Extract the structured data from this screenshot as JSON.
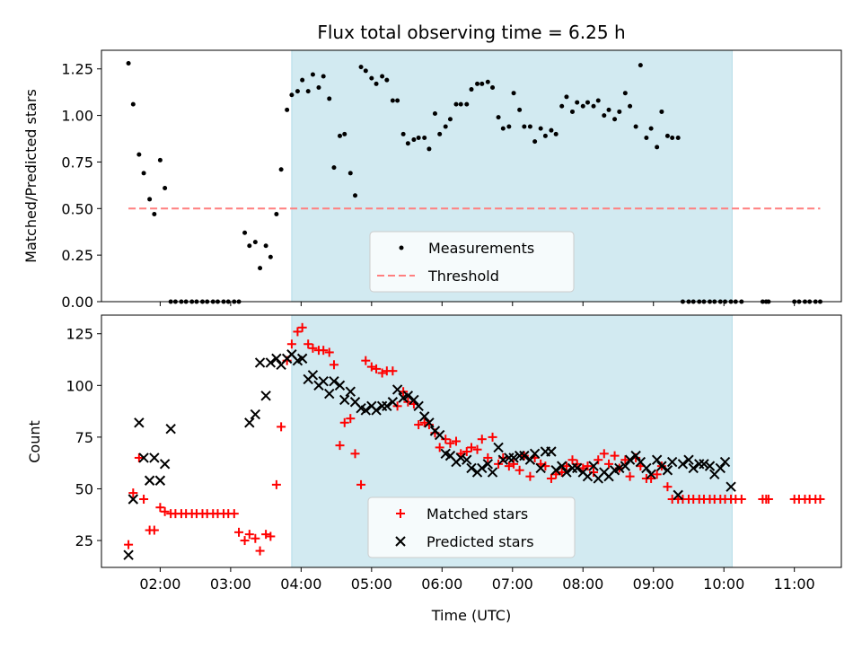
{
  "chart_data": [
    {
      "type": "scatter",
      "title": "Flux total observing time = 6.25 h",
      "xlabel": "",
      "ylabel": "Matched/Predicted stars",
      "ylim": [
        0,
        1.35
      ],
      "yticks": [
        "0.00",
        "0.25",
        "0.50",
        "0.75",
        "1.00",
        "1.25"
      ],
      "shaded_region": {
        "x_start": "03:52",
        "x_end": "10:07",
        "color": "#add8e6"
      },
      "legend_position": "lower-center",
      "series": [
        {
          "name": "Measurements",
          "marker": "dot",
          "color": "#000000",
          "x": [
            "01:33",
            "01:37",
            "01:42",
            "01:46",
            "01:51",
            "01:55",
            "02:00",
            "02:04",
            "02:09",
            "02:13",
            "02:18",
            "02:22",
            "02:27",
            "02:31",
            "02:36",
            "02:40",
            "02:45",
            "02:49",
            "02:54",
            "02:58",
            "03:03",
            "03:07",
            "03:12",
            "03:16",
            "03:21",
            "03:25",
            "03:30",
            "03:34",
            "03:39",
            "03:43",
            "03:48",
            "03:52",
            "03:57",
            "04:01",
            "04:06",
            "04:10",
            "04:15",
            "04:19",
            "04:24",
            "04:28",
            "04:33",
            "04:37",
            "04:42",
            "04:46",
            "04:51",
            "04:55",
            "05:00",
            "05:04",
            "05:09",
            "05:13",
            "05:18",
            "05:22",
            "05:27",
            "05:31",
            "05:36",
            "05:40",
            "05:45",
            "05:49",
            "05:54",
            "05:58",
            "06:03",
            "06:07",
            "06:12",
            "06:16",
            "06:21",
            "06:25",
            "06:30",
            "06:34",
            "06:39",
            "06:43",
            "06:48",
            "06:52",
            "06:57",
            "07:01",
            "07:06",
            "07:10",
            "07:15",
            "07:19",
            "07:24",
            "07:28",
            "07:33",
            "07:37",
            "07:42",
            "07:46",
            "07:51",
            "07:55",
            "08:00",
            "08:04",
            "08:09",
            "08:13",
            "08:18",
            "08:22",
            "08:27",
            "08:31",
            "08:36",
            "08:40",
            "08:45",
            "08:49",
            "08:54",
            "08:58",
            "09:03",
            "09:07",
            "09:12",
            "09:16",
            "09:21",
            "09:25",
            "09:30",
            "09:34",
            "09:39",
            "09:43",
            "09:48",
            "09:52",
            "09:57",
            "10:01",
            "10:06",
            "10:10",
            "10:15",
            "10:33",
            "10:36",
            "10:38",
            "11:00",
            "11:04",
            "11:09",
            "11:13",
            "11:18",
            "11:22"
          ],
          "y": [
            1.28,
            1.06,
            0.79,
            0.69,
            0.55,
            0.47,
            0.76,
            0.61,
            0.0,
            0.0,
            0.0,
            0.0,
            0.0,
            0.0,
            0.0,
            0.0,
            0.0,
            0.0,
            0.0,
            0.0,
            0.0,
            0.0,
            0.37,
            0.3,
            0.32,
            0.18,
            0.3,
            0.24,
            0.47,
            0.71,
            1.03,
            1.11,
            1.13,
            1.19,
            1.13,
            1.22,
            1.15,
            1.21,
            1.09,
            0.72,
            0.89,
            0.9,
            0.69,
            0.57,
            1.26,
            1.24,
            1.2,
            1.17,
            1.21,
            1.19,
            1.08,
            1.08,
            0.9,
            0.85,
            0.87,
            0.88,
            0.88,
            0.82,
            1.01,
            0.9,
            0.94,
            0.98,
            1.06,
            1.06,
            1.06,
            1.14,
            1.17,
            1.17,
            1.18,
            1.15,
            0.99,
            0.93,
            0.94,
            1.12,
            1.03,
            0.94,
            0.94,
            0.86,
            0.93,
            0.89,
            0.92,
            0.9,
            1.05,
            1.1,
            1.02,
            1.07,
            1.05,
            1.07,
            1.05,
            1.08,
            1.0,
            1.03,
            0.98,
            1.02,
            1.12,
            1.05,
            0.94,
            1.27,
            0.88,
            0.93,
            0.83,
            1.02,
            0.89,
            0.88,
            0.88,
            0.0,
            0.0,
            0.0,
            0.0,
            0.0,
            0.0,
            0.0,
            0.0,
            0.0,
            0.0,
            0.0,
            0.0,
            0.0,
            0.0,
            0.0,
            0.0,
            0.0,
            0.0,
            0.0,
            0.0,
            0.0
          ]
        },
        {
          "name": "Threshold",
          "style": "dashed",
          "color": "#ff7f7f",
          "x": [
            "01:33",
            "11:22"
          ],
          "y": [
            0.5,
            0.5
          ]
        }
      ]
    },
    {
      "type": "scatter",
      "title": "",
      "xlabel": "Time (UTC)",
      "ylabel": "Count",
      "ylim": [
        12,
        134
      ],
      "yticks": [
        "25",
        "50",
        "75",
        "100",
        "125"
      ],
      "xticks": [
        "02:00",
        "03:00",
        "04:00",
        "05:00",
        "06:00",
        "07:00",
        "08:00",
        "09:00",
        "10:00",
        "11:00"
      ],
      "shaded_region": {
        "x_start": "03:52",
        "x_end": "10:07",
        "color": "#add8e6"
      },
      "legend_position": "lower-center",
      "series": [
        {
          "name": "Matched stars",
          "marker": "plus",
          "color": "#ff0000",
          "x": [
            "01:33",
            "01:37",
            "01:42",
            "01:46",
            "01:51",
            "01:55",
            "02:00",
            "02:04",
            "02:09",
            "02:13",
            "02:18",
            "02:22",
            "02:27",
            "02:31",
            "02:36",
            "02:40",
            "02:45",
            "02:49",
            "02:54",
            "02:58",
            "03:03",
            "03:07",
            "03:12",
            "03:16",
            "03:21",
            "03:25",
            "03:30",
            "03:34",
            "03:39",
            "03:43",
            "03:48",
            "03:52",
            "03:57",
            "04:01",
            "04:06",
            "04:10",
            "04:15",
            "04:19",
            "04:24",
            "04:28",
            "04:33",
            "04:37",
            "04:42",
            "04:46",
            "04:51",
            "04:55",
            "05:00",
            "05:04",
            "05:09",
            "05:13",
            "05:18",
            "05:22",
            "05:27",
            "05:31",
            "05:36",
            "05:40",
            "05:45",
            "05:49",
            "05:54",
            "05:58",
            "06:03",
            "06:07",
            "06:12",
            "06:16",
            "06:21",
            "06:25",
            "06:30",
            "06:34",
            "06:39",
            "06:43",
            "06:48",
            "06:52",
            "06:57",
            "07:01",
            "07:06",
            "07:10",
            "07:15",
            "07:19",
            "07:24",
            "07:28",
            "07:33",
            "07:37",
            "07:42",
            "07:46",
            "07:51",
            "07:55",
            "08:00",
            "08:04",
            "08:09",
            "08:13",
            "08:18",
            "08:22",
            "08:27",
            "08:31",
            "08:36",
            "08:40",
            "08:45",
            "08:49",
            "08:54",
            "08:58",
            "09:03",
            "09:07",
            "09:12",
            "09:16",
            "09:21",
            "09:25",
            "09:30",
            "09:34",
            "09:39",
            "09:43",
            "09:48",
            "09:52",
            "09:57",
            "10:01",
            "10:06",
            "10:10",
            "10:15",
            "10:33",
            "10:36",
            "10:38",
            "11:00",
            "11:04",
            "11:09",
            "11:13",
            "11:18",
            "11:22"
          ],
          "y": [
            23,
            48,
            65,
            45,
            30,
            30,
            41,
            39,
            38,
            38,
            38,
            38,
            38,
            38,
            38,
            38,
            38,
            38,
            38,
            38,
            38,
            29,
            25,
            28,
            26,
            20,
            28,
            27,
            52,
            80,
            112,
            120,
            126,
            128,
            120,
            118,
            117,
            117,
            116,
            110,
            71,
            82,
            84,
            67,
            52,
            112,
            109,
            108,
            106,
            107,
            107,
            90,
            97,
            92,
            91,
            81,
            82,
            81,
            77,
            70,
            74,
            72,
            73,
            67,
            68,
            70,
            69,
            74,
            65,
            75,
            62,
            65,
            61,
            62,
            59,
            66,
            56,
            65,
            62,
            61,
            55,
            57,
            58,
            61,
            64,
            62,
            60,
            61,
            58,
            64,
            67,
            62,
            66,
            60,
            64,
            56,
            65,
            61,
            55,
            55,
            57,
            61,
            51,
            45,
            45,
            45,
            45,
            45,
            45,
            45,
            45,
            45,
            45,
            45,
            45,
            45,
            45,
            45,
            45,
            45,
            45,
            45,
            45,
            45,
            45,
            45
          ]
        },
        {
          "name": "Predicted stars",
          "marker": "x",
          "color": "#000000",
          "x": [
            "01:33",
            "01:37",
            "01:42",
            "01:46",
            "01:51",
            "01:55",
            "02:00",
            "02:04",
            "02:09",
            "03:16",
            "03:21",
            "03:25",
            "03:30",
            "03:34",
            "03:39",
            "03:43",
            "03:48",
            "03:52",
            "03:57",
            "04:01",
            "04:06",
            "04:10",
            "04:15",
            "04:19",
            "04:24",
            "04:28",
            "04:33",
            "04:37",
            "04:42",
            "04:46",
            "04:51",
            "04:55",
            "05:00",
            "05:04",
            "05:09",
            "05:13",
            "05:18",
            "05:22",
            "05:27",
            "05:31",
            "05:36",
            "05:40",
            "05:45",
            "05:49",
            "05:54",
            "05:58",
            "06:03",
            "06:07",
            "06:12",
            "06:16",
            "06:21",
            "06:25",
            "06:30",
            "06:34",
            "06:39",
            "06:43",
            "06:48",
            "06:52",
            "06:57",
            "07:01",
            "07:06",
            "07:10",
            "07:15",
            "07:19",
            "07:24",
            "07:28",
            "07:33",
            "07:37",
            "07:42",
            "07:46",
            "07:51",
            "07:55",
            "08:00",
            "08:04",
            "08:09",
            "08:13",
            "08:18",
            "08:22",
            "08:27",
            "08:31",
            "08:36",
            "08:40",
            "08:45",
            "08:49",
            "08:54",
            "08:58",
            "09:03",
            "09:07",
            "09:12",
            "09:16",
            "09:21",
            "09:25",
            "09:30",
            "09:34",
            "09:39",
            "09:43",
            "09:48",
            "09:52",
            "09:57",
            "10:01",
            "10:06"
          ],
          "y": [
            18,
            45,
            82,
            65,
            54,
            65,
            54,
            62,
            79,
            82,
            86,
            111,
            95,
            111,
            113,
            110,
            113,
            115,
            112,
            113,
            103,
            105,
            100,
            102,
            96,
            102,
            100,
            93,
            97,
            92,
            89,
            88,
            90,
            88,
            90,
            90,
            92,
            98,
            94,
            95,
            93,
            90,
            85,
            82,
            78,
            76,
            67,
            66,
            63,
            65,
            64,
            60,
            58,
            60,
            62,
            58,
            70,
            64,
            65,
            65,
            66,
            66,
            64,
            67,
            60,
            68,
            68,
            59,
            61,
            58,
            60,
            60,
            58,
            56,
            61,
            55,
            58,
            56,
            59,
            60,
            61,
            64,
            66,
            63,
            60,
            57,
            64,
            61,
            59,
            63,
            47,
            62,
            64,
            60,
            62,
            62,
            61,
            57,
            60,
            63,
            51
          ]
        }
      ]
    }
  ]
}
